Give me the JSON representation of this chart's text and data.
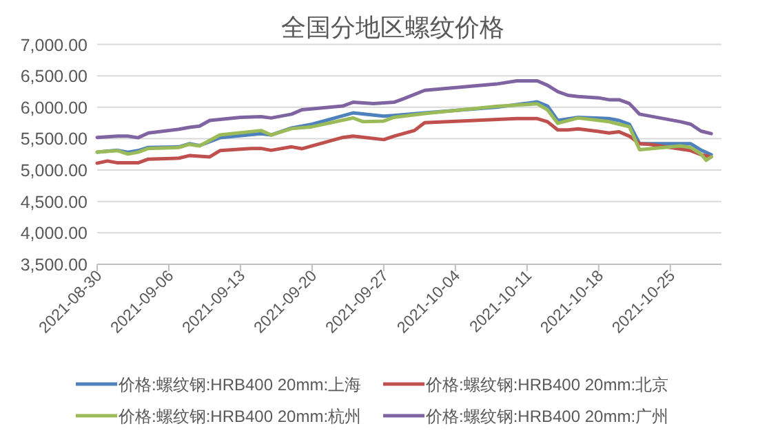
{
  "chart_data": {
    "type": "line",
    "title": "全国分地区螺纹价格",
    "xlim": [
      "2021-08-30",
      "2021-10-30"
    ],
    "xticks": [
      "2021-08-30",
      "2021-09-06",
      "2021-09-13",
      "2021-09-20",
      "2021-09-27",
      "2021-10-04",
      "2021-10-11",
      "2021-10-18",
      "2021-10-25"
    ],
    "ylim": [
      3500,
      7000
    ],
    "yticks": [
      {
        "value": 3500,
        "label": "3,500.00"
      },
      {
        "value": 4000,
        "label": "4,000.00"
      },
      {
        "value": 4500,
        "label": "4,500.00"
      },
      {
        "value": 5000,
        "label": "5,000.00"
      },
      {
        "value": 5500,
        "label": "5,500.00"
      },
      {
        "value": 6000,
        "label": "6,000.00"
      },
      {
        "value": 6500,
        "label": "6,500.00"
      },
      {
        "value": 7000,
        "label": "7,000.00"
      }
    ],
    "grid": "y",
    "legend": "bottom",
    "series": [
      {
        "name": "价格:螺纹钢:HRB400 20mm:上海",
        "color": "#4f81bd",
        "x": [
          "2021-08-30",
          "2021-09-01",
          "2021-09-02",
          "2021-09-03",
          "2021-09-04",
          "2021-09-07",
          "2021-09-08",
          "2021-09-09",
          "2021-09-11",
          "2021-09-15",
          "2021-09-16",
          "2021-09-18",
          "2021-09-20",
          "2021-09-24",
          "2021-09-27",
          "2021-09-28",
          "2021-10-01",
          "2021-10-08",
          "2021-10-12",
          "2021-10-13",
          "2021-10-14",
          "2021-10-16",
          "2021-10-19",
          "2021-10-20",
          "2021-10-21",
          "2021-10-22",
          "2021-10-26",
          "2021-10-27",
          "2021-10-28",
          "2021-10-29"
        ],
        "values": [
          5285,
          5315,
          5285,
          5310,
          5360,
          5370,
          5420,
          5390,
          5515,
          5580,
          5560,
          5670,
          5730,
          5910,
          5860,
          5870,
          5910,
          6000,
          6085,
          6020,
          5790,
          5840,
          5820,
          5790,
          5730,
          5420,
          5420,
          5420,
          5320,
          5245
        ]
      },
      {
        "name": "价格:螺纹钢:HRB400 20mm:北京",
        "color": "#c0504d",
        "x": [
          "2021-08-30",
          "2021-08-31",
          "2021-09-01",
          "2021-09-03",
          "2021-09-04",
          "2021-09-07",
          "2021-09-08",
          "2021-09-10",
          "2021-09-11",
          "2021-09-14",
          "2021-09-15",
          "2021-09-16",
          "2021-09-18",
          "2021-09-19",
          "2021-09-23",
          "2021-09-24",
          "2021-09-27",
          "2021-09-28",
          "2021-09-30",
          "2021-10-01",
          "2021-10-10",
          "2021-10-12",
          "2021-10-13",
          "2021-10-14",
          "2021-10-15",
          "2021-10-16",
          "2021-10-18",
          "2021-10-19",
          "2021-10-20",
          "2021-10-21",
          "2021-10-22",
          "2021-10-23",
          "2021-10-27",
          "2021-10-28",
          "2021-10-29"
        ],
        "values": [
          5110,
          5145,
          5115,
          5115,
          5175,
          5190,
          5230,
          5210,
          5310,
          5345,
          5345,
          5315,
          5370,
          5340,
          5520,
          5540,
          5485,
          5540,
          5630,
          5755,
          5820,
          5820,
          5770,
          5640,
          5640,
          5655,
          5615,
          5590,
          5610,
          5540,
          5420,
          5410,
          5310,
          5245,
          5210
        ]
      },
      {
        "name": "价格:螺纹钢:HRB400 20mm:杭州",
        "color": "#9bbb59",
        "x": [
          "2021-08-30",
          "2021-09-01",
          "2021-09-02",
          "2021-09-03",
          "2021-09-04",
          "2021-09-07",
          "2021-09-08",
          "2021-09-09",
          "2021-09-11",
          "2021-09-15",
          "2021-09-16",
          "2021-09-18",
          "2021-09-20",
          "2021-09-24",
          "2021-09-25",
          "2021-09-27",
          "2021-09-28",
          "2021-10-01",
          "2021-10-08",
          "2021-10-12",
          "2021-10-13",
          "2021-10-14",
          "2021-10-16",
          "2021-10-19",
          "2021-10-20",
          "2021-10-21",
          "2021-10-22",
          "2021-10-26",
          "2021-10-27",
          "2021-10-28",
          "2021-10-28T12:00",
          "2021-10-29"
        ],
        "values": [
          5285,
          5310,
          5255,
          5285,
          5345,
          5360,
          5410,
          5385,
          5560,
          5630,
          5560,
          5660,
          5690,
          5830,
          5770,
          5780,
          5840,
          5900,
          6015,
          6055,
          5960,
          5745,
          5830,
          5770,
          5730,
          5690,
          5325,
          5385,
          5360,
          5255,
          5155,
          5210
        ]
      },
      {
        "name": "价格:螺纹钢:HRB400 20mm:广州",
        "color": "#8064a2",
        "x": [
          "2021-08-30",
          "2021-09-01",
          "2021-09-02",
          "2021-09-03",
          "2021-09-04",
          "2021-09-07",
          "2021-09-08",
          "2021-09-09",
          "2021-09-10",
          "2021-09-13",
          "2021-09-15",
          "2021-09-16",
          "2021-09-18",
          "2021-09-19",
          "2021-09-23",
          "2021-09-24",
          "2021-09-26",
          "2021-09-28",
          "2021-09-29",
          "2021-10-01",
          "2021-10-08",
          "2021-10-10",
          "2021-10-12",
          "2021-10-13",
          "2021-10-14",
          "2021-10-15",
          "2021-10-16",
          "2021-10-18",
          "2021-10-19",
          "2021-10-20",
          "2021-10-21",
          "2021-10-22",
          "2021-10-26",
          "2021-10-27",
          "2021-10-28",
          "2021-10-29"
        ],
        "values": [
          5520,
          5540,
          5540,
          5515,
          5590,
          5650,
          5680,
          5700,
          5790,
          5840,
          5850,
          5830,
          5890,
          5960,
          6020,
          6080,
          6060,
          6080,
          6140,
          6270,
          6370,
          6420,
          6420,
          6350,
          6250,
          6190,
          6170,
          6150,
          6120,
          6120,
          6060,
          5890,
          5770,
          5730,
          5620,
          5580
        ]
      }
    ]
  }
}
